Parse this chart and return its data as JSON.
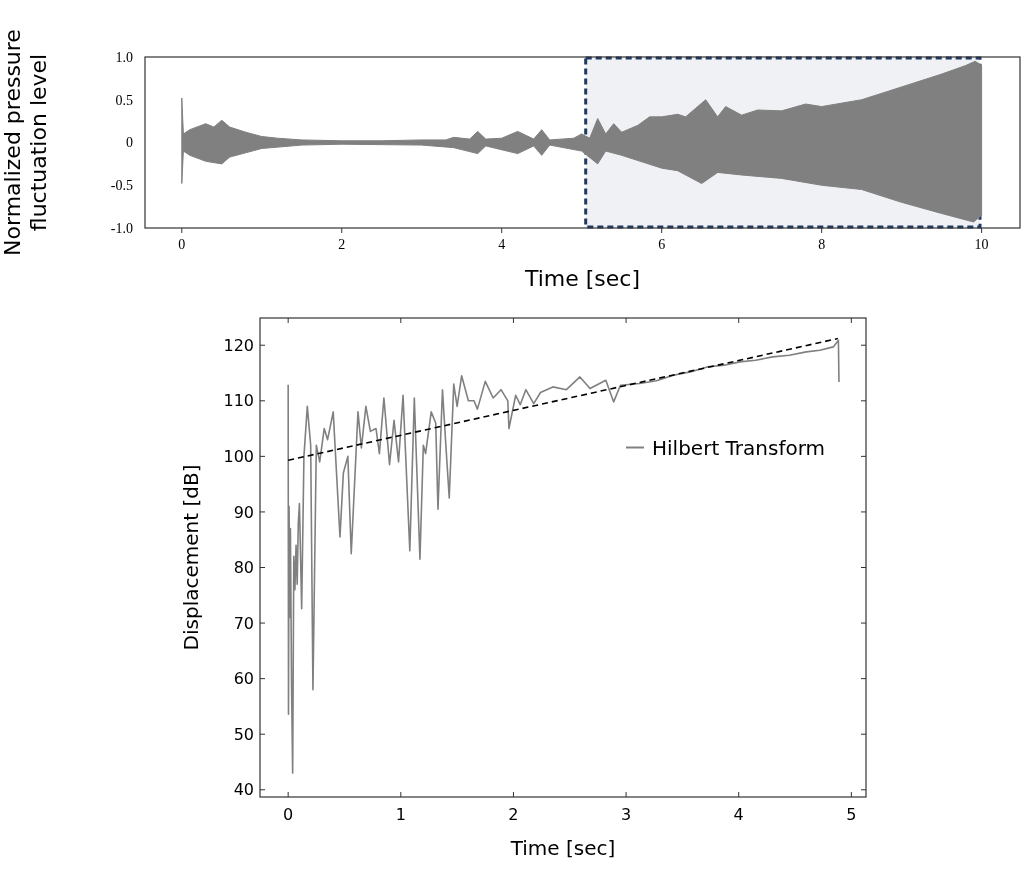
{
  "chart_data": [
    {
      "type": "area",
      "xlabel": "Time [sec]",
      "ylabel": "Normalized pressure\nfluctuation level",
      "xlim": [
        -0.46,
        10.48
      ],
      "ylim": [
        -1,
        1
      ],
      "xticks": [
        0,
        2,
        4,
        6,
        8,
        10
      ],
      "yticks": [
        {
          "value": 1,
          "label": "1.0"
        },
        0.5,
        0,
        -0.5,
        {
          "value": -1,
          "label": "-1.0"
        }
      ],
      "series": [
        {
          "color": "#808080",
          "x": [
            0,
            0.02,
            0.1,
            0.3,
            0.4,
            0.5,
            0.6,
            0.8,
            1.0,
            1.2,
            1.5,
            2,
            2.5,
            3,
            3.3,
            3.4,
            3.6,
            3.7,
            3.8,
            4.0,
            4.2,
            4.4,
            4.5,
            4.6,
            4.9,
            5.0,
            5.1,
            5.2,
            5.3,
            5.4,
            5.5,
            5.7,
            5.85,
            6.0,
            6.2,
            6.3,
            6.4,
            6.55,
            6.7,
            6.8,
            7.0,
            7.2,
            7.5,
            7.8,
            8.0,
            8.5,
            9.0,
            9.5,
            9.8,
            9.92,
            10
          ],
          "values": [
            0.52,
            0.1,
            0.15,
            0.22,
            0.18,
            0.26,
            0.18,
            0.12,
            0.07,
            0.05,
            0.03,
            0.02,
            0.02,
            0.03,
            0.03,
            0.06,
            0.04,
            0.13,
            0.04,
            0.05,
            0.13,
            0.04,
            0.15,
            0.03,
            0.05,
            0.1,
            0.05,
            0.28,
            0.1,
            0.22,
            0.12,
            0.2,
            0.3,
            0.3,
            0.33,
            0.3,
            0.38,
            0.5,
            0.3,
            0.42,
            0.32,
            0.38,
            0.37,
            0.45,
            0.42,
            0.5,
            0.65,
            0.8,
            0.9,
            0.95,
            0.9
          ]
        },
        {
          "color": "#808080",
          "x": [
            0,
            0.02,
            0.1,
            0.3,
            0.5,
            0.6,
            0.8,
            1.0,
            1.5,
            2,
            3,
            3.4,
            3.7,
            3.8,
            4.2,
            4.4,
            4.5,
            4.6,
            5.0,
            5.2,
            5.3,
            5.5,
            6.0,
            6.2,
            6.5,
            6.7,
            7.0,
            7.5,
            8.0,
            8.5,
            9.0,
            9.5,
            9.9,
            10
          ],
          "values": [
            -0.48,
            -0.1,
            -0.15,
            -0.22,
            -0.25,
            -0.17,
            -0.12,
            -0.07,
            -0.03,
            -0.02,
            -0.03,
            -0.06,
            -0.13,
            -0.04,
            -0.13,
            -0.04,
            -0.15,
            -0.03,
            -0.1,
            -0.25,
            -0.1,
            -0.15,
            -0.3,
            -0.33,
            -0.48,
            -0.35,
            -0.38,
            -0.42,
            -0.5,
            -0.55,
            -0.7,
            -0.83,
            -0.93,
            -0.85
          ]
        }
      ],
      "bands": [
        {
          "axis": "x",
          "from": 5.05,
          "to": 9.98,
          "color": "#1f3864"
        }
      ]
    },
    {
      "type": "line",
      "xlabel": "Time [sec]",
      "ylabel": "Displacement [dB]",
      "xlim": [
        -0.25,
        5.13
      ],
      "ylim": [
        38.7,
        124.9
      ],
      "xticks": [
        0,
        1,
        2,
        3,
        4,
        5
      ],
      "yticks": [
        40,
        50,
        60,
        70,
        80,
        90,
        100,
        110,
        120
      ],
      "legend": "right",
      "series": [
        {
          "name": "Hilbert Transform",
          "color": "#808080",
          "x": [
            0,
            0.003,
            0.008,
            0.015,
            0.02,
            0.03,
            0.04,
            0.05,
            0.06,
            0.07,
            0.08,
            0.09,
            0.1,
            0.12,
            0.14,
            0.17,
            0.2,
            0.22,
            0.25,
            0.28,
            0.32,
            0.35,
            0.4,
            0.46,
            0.49,
            0.53,
            0.56,
            0.62,
            0.65,
            0.69,
            0.73,
            0.78,
            0.81,
            0.85,
            0.9,
            0.94,
            0.98,
            1.02,
            1.08,
            1.12,
            1.17,
            1.2,
            1.22,
            1.27,
            1.31,
            1.33,
            1.37,
            1.4,
            1.43,
            1.47,
            1.5,
            1.54,
            1.6,
            1.65,
            1.68,
            1.75,
            1.82,
            1.89,
            1.95,
            1.96,
            2.02,
            2.06,
            2.11,
            2.18,
            2.24,
            2.35,
            2.47,
            2.59,
            2.68,
            2.82,
            2.89,
            2.95,
            3.12,
            3.27,
            3.42,
            3.57,
            3.72,
            3.87,
            4.01,
            4.15,
            4.3,
            4.45,
            4.6,
            4.72,
            4.84,
            4.885,
            4.89
          ],
          "values": [
            112.9,
            53.6,
            91,
            71,
            87,
            59,
            43,
            82,
            76,
            84,
            77,
            88,
            91.5,
            72.6,
            100,
            109,
            102,
            58,
            102,
            99,
            105,
            103,
            108,
            85.5,
            97,
            100,
            82.5,
            108,
            101.5,
            109,
            104.5,
            105,
            100.5,
            110.5,
            98.5,
            106.5,
            99,
            111,
            83,
            110.5,
            81.5,
            102,
            100.5,
            108,
            106,
            90.5,
            112,
            102,
            92.5,
            113,
            109,
            114.5,
            110,
            110,
            108.5,
            113.5,
            110.5,
            112,
            110,
            105,
            111,
            109.3,
            112,
            109.5,
            111.5,
            112.5,
            112,
            114.3,
            112.2,
            113.7,
            109.8,
            112.8,
            113.1,
            113.6,
            114.6,
            115.2,
            116.1,
            116.4,
            117,
            117.3,
            117.9,
            118.2,
            118.8,
            119.1,
            119.7,
            120.9,
            113.4
          ]
        },
        {
          "type": "line",
          "color": "#000000",
          "line_style": "dashed",
          "x": [
            0,
            4.88
          ],
          "values": [
            99.3,
            121.2
          ]
        }
      ]
    }
  ]
}
